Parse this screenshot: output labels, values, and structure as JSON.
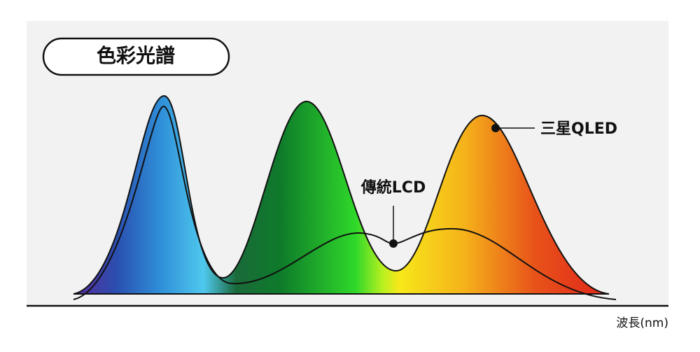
{
  "title": "色彩光譜",
  "labels": {
    "qled": "三星QLED",
    "lcd": "傳統LCD"
  },
  "x_axis_label": "波長(nm)"
}
